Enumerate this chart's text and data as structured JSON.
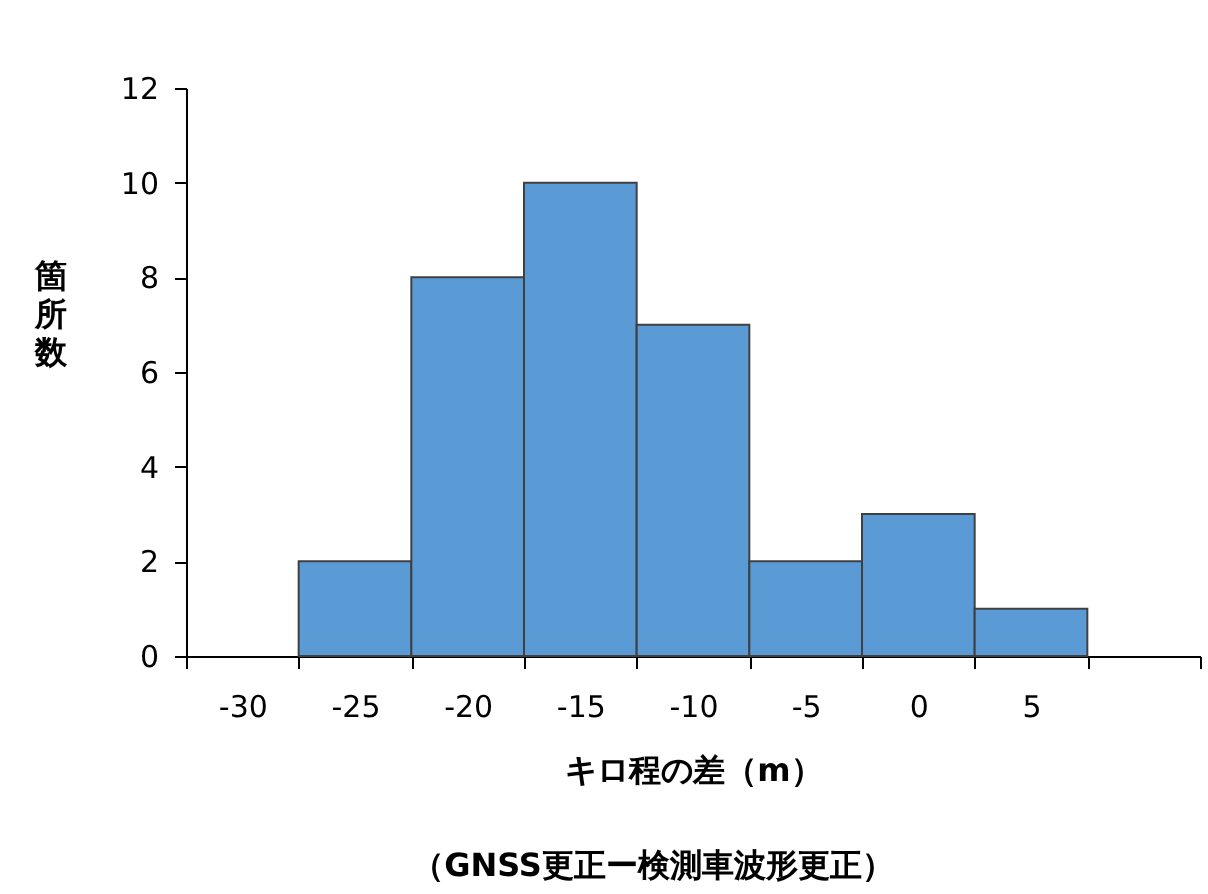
{
  "chart_data": {
    "type": "bar",
    "xlabel": "キロ程の差（m）",
    "ylabel": "箇所数",
    "annotations": [
      "（GNSS更正ー検測車波形更正）"
    ],
    "categories": [
      "-30",
      "-25",
      "-20",
      "-15",
      "-10",
      "-5",
      "0",
      "5",
      null
    ],
    "values": [
      null,
      2,
      8,
      10,
      7,
      2,
      3,
      1,
      null
    ],
    "color": "#5b9bd5",
    "ylim": [
      0,
      12
    ],
    "yticks": [
      0,
      2,
      4,
      6,
      8,
      10,
      12
    ]
  }
}
